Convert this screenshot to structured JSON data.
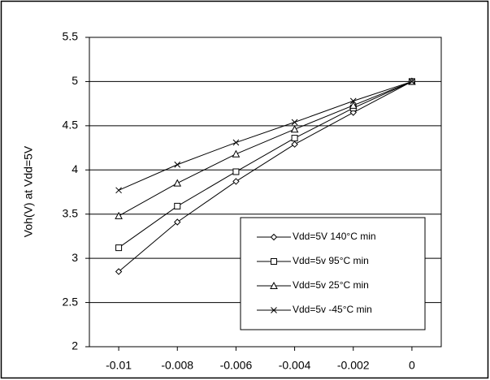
{
  "chart_data": {
    "type": "line",
    "y_label": "Voh(V) at Vdd=5V",
    "x": [
      -0.01,
      -0.008,
      -0.006,
      -0.004,
      -0.002,
      0
    ],
    "xlim": [
      -0.011,
      0.001
    ],
    "xticks": [
      -0.01,
      -0.008,
      -0.006,
      -0.004,
      -0.002,
      0
    ],
    "ylim": [
      2,
      5.5
    ],
    "yticks": [
      2,
      2.5,
      3,
      3.5,
      4,
      4.5,
      5,
      5.5
    ],
    "grid": true,
    "legend": "lower right",
    "series": [
      {
        "name": "Vdd=5V 140°C min",
        "color": "#000000",
        "marker": "diamond",
        "values": [
          2.85,
          3.41,
          3.87,
          4.29,
          4.65,
          5.0
        ]
      },
      {
        "name": "Vdd=5v 95°C min",
        "color": "#000000",
        "marker": "square",
        "values": [
          3.12,
          3.59,
          3.98,
          4.36,
          4.7,
          5.0
        ]
      },
      {
        "name": "Vdd=5v 25°C min",
        "color": "#000000",
        "marker": "triangle",
        "values": [
          3.48,
          3.85,
          4.18,
          4.46,
          4.73,
          5.0
        ]
      },
      {
        "name": "Vdd=5v -45°C min",
        "color": "#000000",
        "marker": "x",
        "values": [
          3.77,
          4.06,
          4.31,
          4.54,
          4.78,
          5.0
        ]
      }
    ]
  }
}
